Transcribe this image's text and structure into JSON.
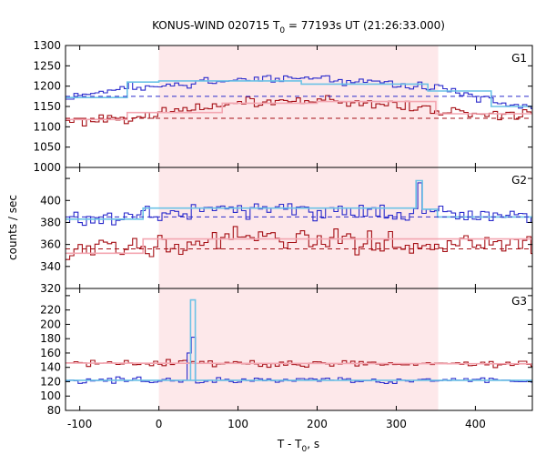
{
  "chart_data": {
    "type": "line",
    "title_main": "KONUS-WIND 020715 T",
    "title_sub": "0",
    "title_rest": " = 77193s UT (21:26:33.000)",
    "xlabel_main": "T - T",
    "xlabel_sub": "0",
    "xlabel_rest": ", s",
    "ylabel": "counts / sec",
    "xlim": [
      -118,
      472
    ],
    "xticks": [
      -100,
      0,
      100,
      200,
      300,
      400
    ],
    "xtick_labels": [
      "-100",
      "0",
      "100",
      "200",
      "300",
      "400"
    ],
    "shaded_interval": [
      0,
      353
    ],
    "colors": {
      "shade": "#fde8ea",
      "series_blue": "#2b2bcc",
      "series_red": "#a50f15",
      "fit_lightblue": "#6cc2e6",
      "fit_pink": "#f4a7b2"
    },
    "panels": [
      {
        "label": "G1",
        "ylim": [
          1000,
          1300
        ],
        "yticks": [
          1000,
          1050,
          1100,
          1150,
          1200,
          1250,
          1300
        ],
        "ytick_labels": [
          "1000",
          "1050",
          "1100",
          "1150",
          "1200",
          "1250",
          "1300"
        ],
        "blue_background": 1175,
        "red_background": 1121,
        "blue_trend": [
          [
            -118,
            1172
          ],
          [
            -40,
            1195
          ],
          [
            100,
            1215
          ],
          [
            200,
            1220
          ],
          [
            300,
            1205
          ],
          [
            350,
            1195
          ],
          [
            420,
            1165
          ],
          [
            472,
            1150
          ]
        ],
        "red_trend": [
          [
            -118,
            1113
          ],
          [
            0,
            1130
          ],
          [
            100,
            1160
          ],
          [
            200,
            1165
          ],
          [
            300,
            1155
          ],
          [
            350,
            1140
          ],
          [
            420,
            1130
          ],
          [
            472,
            1130
          ]
        ],
        "blue_fit": [
          [
            -118,
            1172
          ],
          [
            -40,
            1172
          ],
          [
            -40,
            1210
          ],
          [
            0,
            1210
          ],
          [
            0,
            1213
          ],
          [
            180,
            1213
          ],
          [
            180,
            1205
          ],
          [
            340,
            1205
          ],
          [
            340,
            1188
          ],
          [
            420,
            1188
          ],
          [
            420,
            1150
          ],
          [
            472,
            1150
          ]
        ],
        "red_fit": [
          [
            -118,
            1118
          ],
          [
            -40,
            1118
          ],
          [
            -40,
            1135
          ],
          [
            80,
            1135
          ],
          [
            80,
            1158
          ],
          [
            200,
            1158
          ],
          [
            200,
            1162
          ],
          [
            350,
            1162
          ],
          [
            350,
            1132
          ],
          [
            472,
            1132
          ]
        ],
        "blue_amp": 9,
        "red_amp": 11,
        "blue_spikes": [],
        "fit_spike": null
      },
      {
        "label": "G2",
        "ylim": [
          320,
          430
        ],
        "yticks": [
          320,
          340,
          360,
          380,
          400,
          420
        ],
        "ytick_labels": [
          "320",
          "340",
          "360",
          "380",
          "400",
          "420"
        ],
        "blue_background": 385,
        "red_background": 356,
        "blue_trend": [
          [
            -118,
            383
          ],
          [
            0,
            388
          ],
          [
            100,
            392
          ],
          [
            200,
            392
          ],
          [
            300,
            390
          ],
          [
            350,
            388
          ],
          [
            420,
            385
          ],
          [
            472,
            385
          ]
        ],
        "red_trend": [
          [
            -118,
            350
          ],
          [
            0,
            362
          ],
          [
            100,
            364
          ],
          [
            200,
            364
          ],
          [
            300,
            362
          ],
          [
            350,
            360
          ],
          [
            420,
            360
          ],
          [
            472,
            360
          ]
        ],
        "blue_fit": [
          [
            -118,
            383
          ],
          [
            -20,
            383
          ],
          [
            -20,
            393
          ],
          [
            325,
            393
          ],
          [
            325,
            418
          ],
          [
            333,
            418
          ],
          [
            333,
            392
          ],
          [
            352,
            392
          ],
          [
            352,
            385
          ],
          [
            472,
            385
          ]
        ],
        "red_fit": [
          [
            -118,
            352
          ],
          [
            -20,
            352
          ],
          [
            -20,
            365
          ],
          [
            472,
            365
          ]
        ],
        "blue_amp": 7,
        "red_amp": 9,
        "blue_spikes": [
          [
            325,
            333,
            416
          ]
        ],
        "fit_spike": null
      },
      {
        "label": "G3",
        "ylim": [
          80,
          250
        ],
        "yticks": [
          80,
          100,
          120,
          140,
          160,
          180,
          200,
          220,
          240
        ],
        "ytick_labels": [
          "80",
          "100",
          "120",
          "140",
          "160",
          "180",
          "200",
          "220",
          "240"
        ],
        "blue_background": null,
        "red_background": null,
        "blue_trend": [
          [
            -118,
            122
          ],
          [
            472,
            122
          ]
        ],
        "red_trend": [
          [
            -118,
            146
          ],
          [
            472,
            145
          ]
        ],
        "blue_fit": [
          [
            -118,
            122
          ],
          [
            472,
            122
          ]
        ],
        "red_fit": [
          [
            -118,
            146
          ],
          [
            472,
            145
          ]
        ],
        "blue_amp": 4,
        "red_amp": 4,
        "blue_spikes": [
          [
            37,
            42,
            160
          ],
          [
            42,
            46,
            182
          ]
        ],
        "fit_spike": [
          40,
          46,
          234
        ]
      }
    ]
  }
}
